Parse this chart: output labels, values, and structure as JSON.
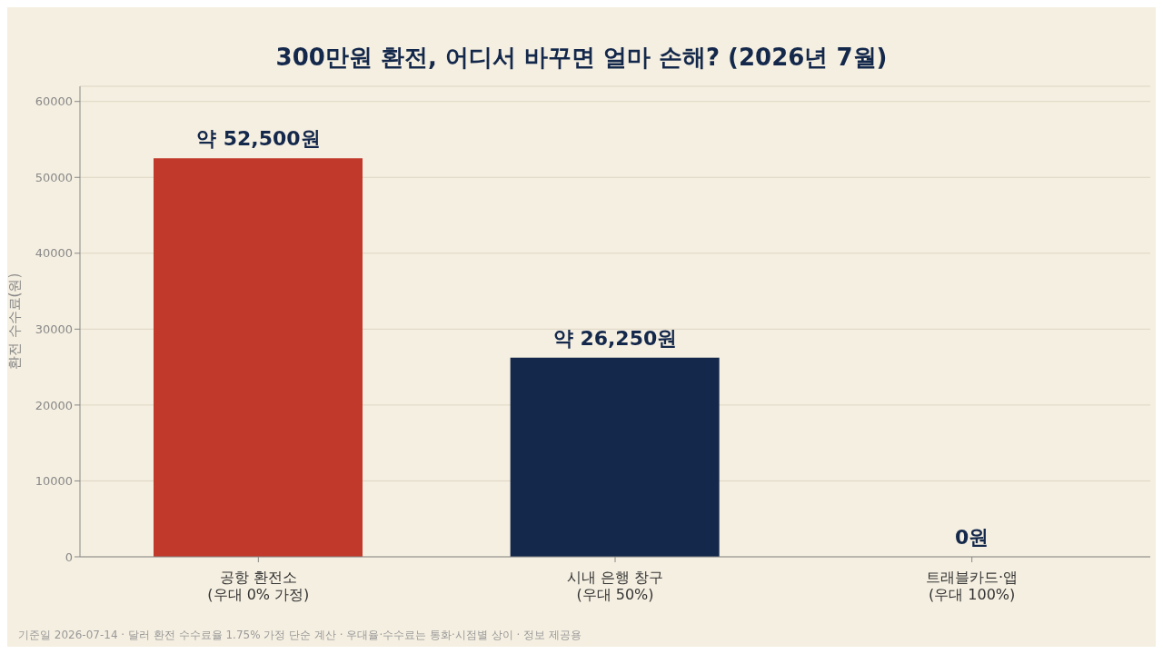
{
  "chart_data": {
    "type": "bar",
    "title": "300만원 환전, 어디서 바꾸면 얼마 손해? (2026년 7월)",
    "ylabel": "환전 수수료(원)",
    "categories": [
      "공항 환전소\n(우대 0% 가정)",
      "시내 은행 창구\n(우대 50%)",
      "트래블카드·앱\n(우대 100%)"
    ],
    "values": [
      52500,
      26250,
      0
    ],
    "colors": [
      "#c0392b",
      "#14284b",
      "#14284b"
    ],
    "value_labels": [
      "약 52,500원",
      "약 26,250원",
      "0원"
    ],
    "ylim": [
      0,
      62000
    ],
    "yticks": [
      0,
      10000,
      20000,
      30000,
      40000,
      50000,
      60000
    ],
    "grid": "y",
    "legend": false,
    "annotations": [
      "기준일 2026-07-14 · 달러 환전 수수료율 1.75% 가정 단순 계산 · 우대율·수수료는 통화·시점별 상이 · 정보 제공용"
    ]
  }
}
